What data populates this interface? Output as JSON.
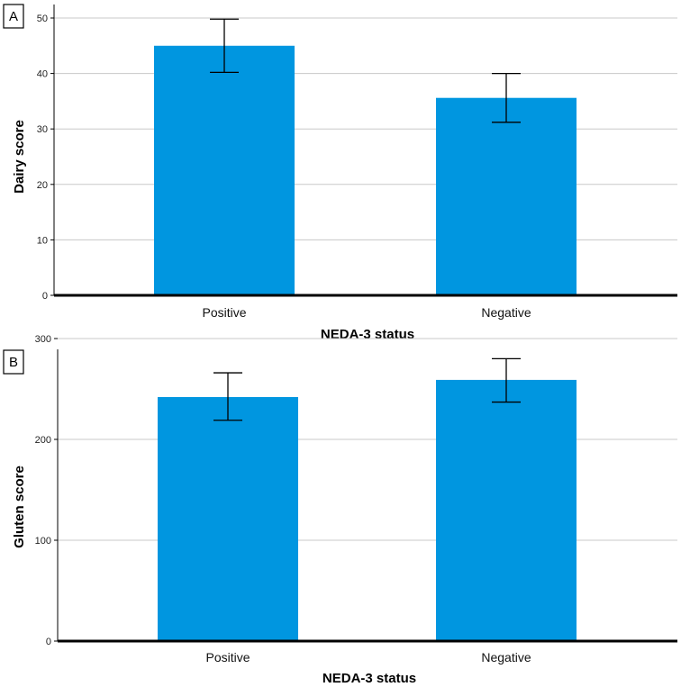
{
  "chart_data": [
    {
      "type": "bar",
      "panel_label": "A",
      "categories": [
        "Positive",
        "Negative"
      ],
      "values": [
        45.0,
        35.6
      ],
      "error_low": [
        40.2,
        31.2
      ],
      "error_high": [
        49.8,
        40.0
      ],
      "xlabel": "NEDA-3 status",
      "ylabel": "Dairy score",
      "ylim": [
        0,
        50
      ],
      "yticks": [
        0,
        10,
        20,
        30,
        40,
        50
      ],
      "grid": true,
      "bar_color": "#0096e0"
    },
    {
      "type": "bar",
      "panel_label": "B",
      "categories": [
        "Positive",
        "Negative"
      ],
      "values": [
        242,
        259
      ],
      "error_low": [
        219,
        237
      ],
      "error_high": [
        266,
        280
      ],
      "xlabel": "NEDA-3 status",
      "ylabel": "Gluten score",
      "ylim": [
        0,
        300
      ],
      "yticks": [
        0,
        100,
        200,
        300
      ],
      "grid": true,
      "bar_color": "#0096e0"
    }
  ]
}
